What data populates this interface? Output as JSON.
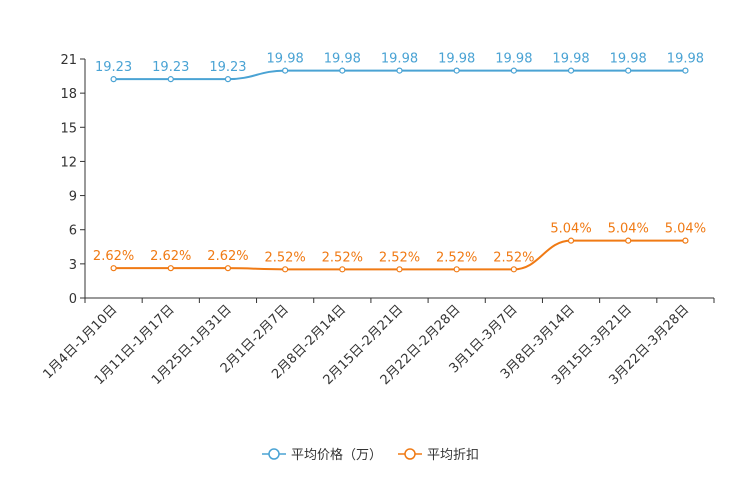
{
  "chart_data": {
    "type": "line",
    "title": "",
    "xlabel": "",
    "ylabel": "",
    "ylim": [
      0,
      21
    ],
    "yticks": [
      0,
      3,
      6,
      9,
      12,
      15,
      18,
      21
    ],
    "grid": false,
    "legend_position": "bottom-center",
    "categories": [
      "1月4日-1月10日",
      "1月11日-1月17日",
      "1月25日-1月31日",
      "2月1日-2月7日",
      "2月8日-2月14日",
      "2月15日-2月21日",
      "2月22日-2月28日",
      "3月1日-3月7日",
      "3月8日-3月14日",
      "3月15日-3月21日",
      "3月22日-3月28日"
    ],
    "series": [
      {
        "name": "平均价格（万）",
        "color": "#4aa3d4",
        "values": [
          19.23,
          19.23,
          19.23,
          19.98,
          19.98,
          19.98,
          19.98,
          19.98,
          19.98,
          19.98,
          19.98
        ],
        "labels": [
          "19.23",
          "19.23",
          "19.23",
          "19.98",
          "19.98",
          "19.98",
          "19.98",
          "19.98",
          "19.98",
          "19.98",
          "19.98"
        ]
      },
      {
        "name": "平均折扣",
        "color": "#f07a14",
        "values": [
          2.62,
          2.62,
          2.62,
          2.52,
          2.52,
          2.52,
          2.52,
          2.52,
          5.04,
          5.04,
          5.04
        ],
        "labels": [
          "2.62%",
          "2.62%",
          "2.62%",
          "2.52%",
          "2.52%",
          "2.52%",
          "2.52%",
          "2.52%",
          "5.04%",
          "5.04%",
          "5.04%"
        ]
      }
    ]
  }
}
